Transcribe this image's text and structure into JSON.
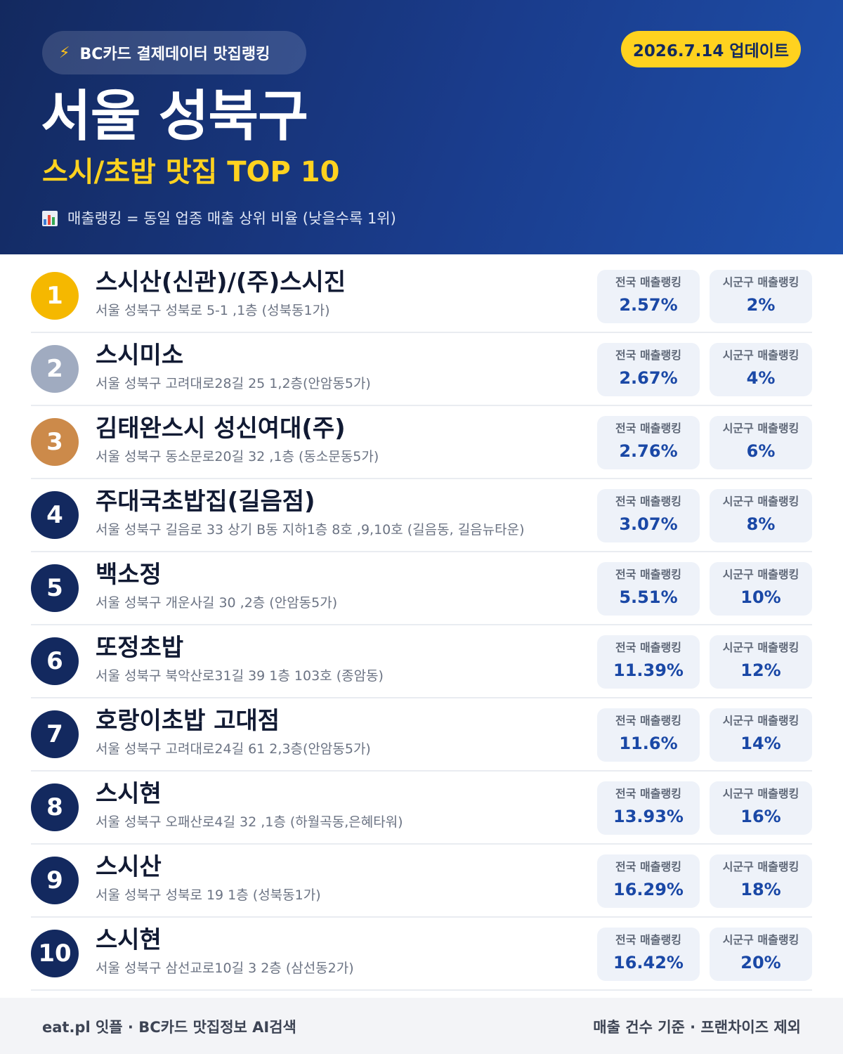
{
  "header": {
    "badge": "BC카드 결제데이터 맛집랭킹",
    "date": "2026.7.14 업데이트",
    "title": "서울 성북구",
    "subtitle": "스시/초밥 맛집 TOP 10",
    "description": "매출랭킹 = 동일 업종 매출 상위 비율 (낮을수록 1위)"
  },
  "colors": {
    "gold": "#f5b800",
    "silver": "#a0abc0",
    "bronze": "#cc8a4a",
    "navy": "#13295f",
    "accent_yellow": "#ffd21f"
  },
  "stat_labels": {
    "national": "전국 매출랭킹",
    "local": "시군구 매출랭킹"
  },
  "items": [
    {
      "rank": "1",
      "name": "스시산(신관)/(주)스시진",
      "address": "서울 성북구 성북로 5-1 ,1층 (성북동1가)",
      "national": "2.57%",
      "local": "2%"
    },
    {
      "rank": "2",
      "name": "스시미소",
      "address": "서울 성북구 고려대로28길 25 1,2층(안암동5가)",
      "national": "2.67%",
      "local": "4%"
    },
    {
      "rank": "3",
      "name": "김태완스시 성신여대(주)",
      "address": "서울 성북구 동소문로20길 32 ,1층 (동소문동5가)",
      "national": "2.76%",
      "local": "6%"
    },
    {
      "rank": "4",
      "name": "주대국초밥집(길음점)",
      "address": "서울 성북구 길음로 33 상기 B동 지하1층 8호 ,9,10호 (길음동, 길음뉴타운)",
      "national": "3.07%",
      "local": "8%"
    },
    {
      "rank": "5",
      "name": "백소정",
      "address": "서울 성북구 개운사길 30 ,2층 (안암동5가)",
      "national": "5.51%",
      "local": "10%"
    },
    {
      "rank": "6",
      "name": "또정초밥",
      "address": "서울 성북구 북악산로31길 39 1층 103호 (종암동)",
      "national": "11.39%",
      "local": "12%"
    },
    {
      "rank": "7",
      "name": "호랑이초밥 고대점",
      "address": "서울 성북구 고려대로24길 61 2,3층(안암동5가)",
      "national": "11.6%",
      "local": "14%"
    },
    {
      "rank": "8",
      "name": "스시현",
      "address": "서울 성북구 오패산로4길 32 ,1층 (하월곡동,은혜타워)",
      "national": "13.93%",
      "local": "16%"
    },
    {
      "rank": "9",
      "name": "스시산",
      "address": "서울 성북구 성북로 19 1층 (성북동1가)",
      "national": "16.29%",
      "local": "18%"
    },
    {
      "rank": "10",
      "name": "스시현",
      "address": "서울 성북구 삼선교로10길 3 2층 (삼선동2가)",
      "national": "16.42%",
      "local": "20%"
    }
  ],
  "footer": {
    "left": "eat.pl 잇플 · BC카드 맛집정보 AI검색",
    "right": "매출 건수 기준 · 프랜차이즈 제외"
  }
}
